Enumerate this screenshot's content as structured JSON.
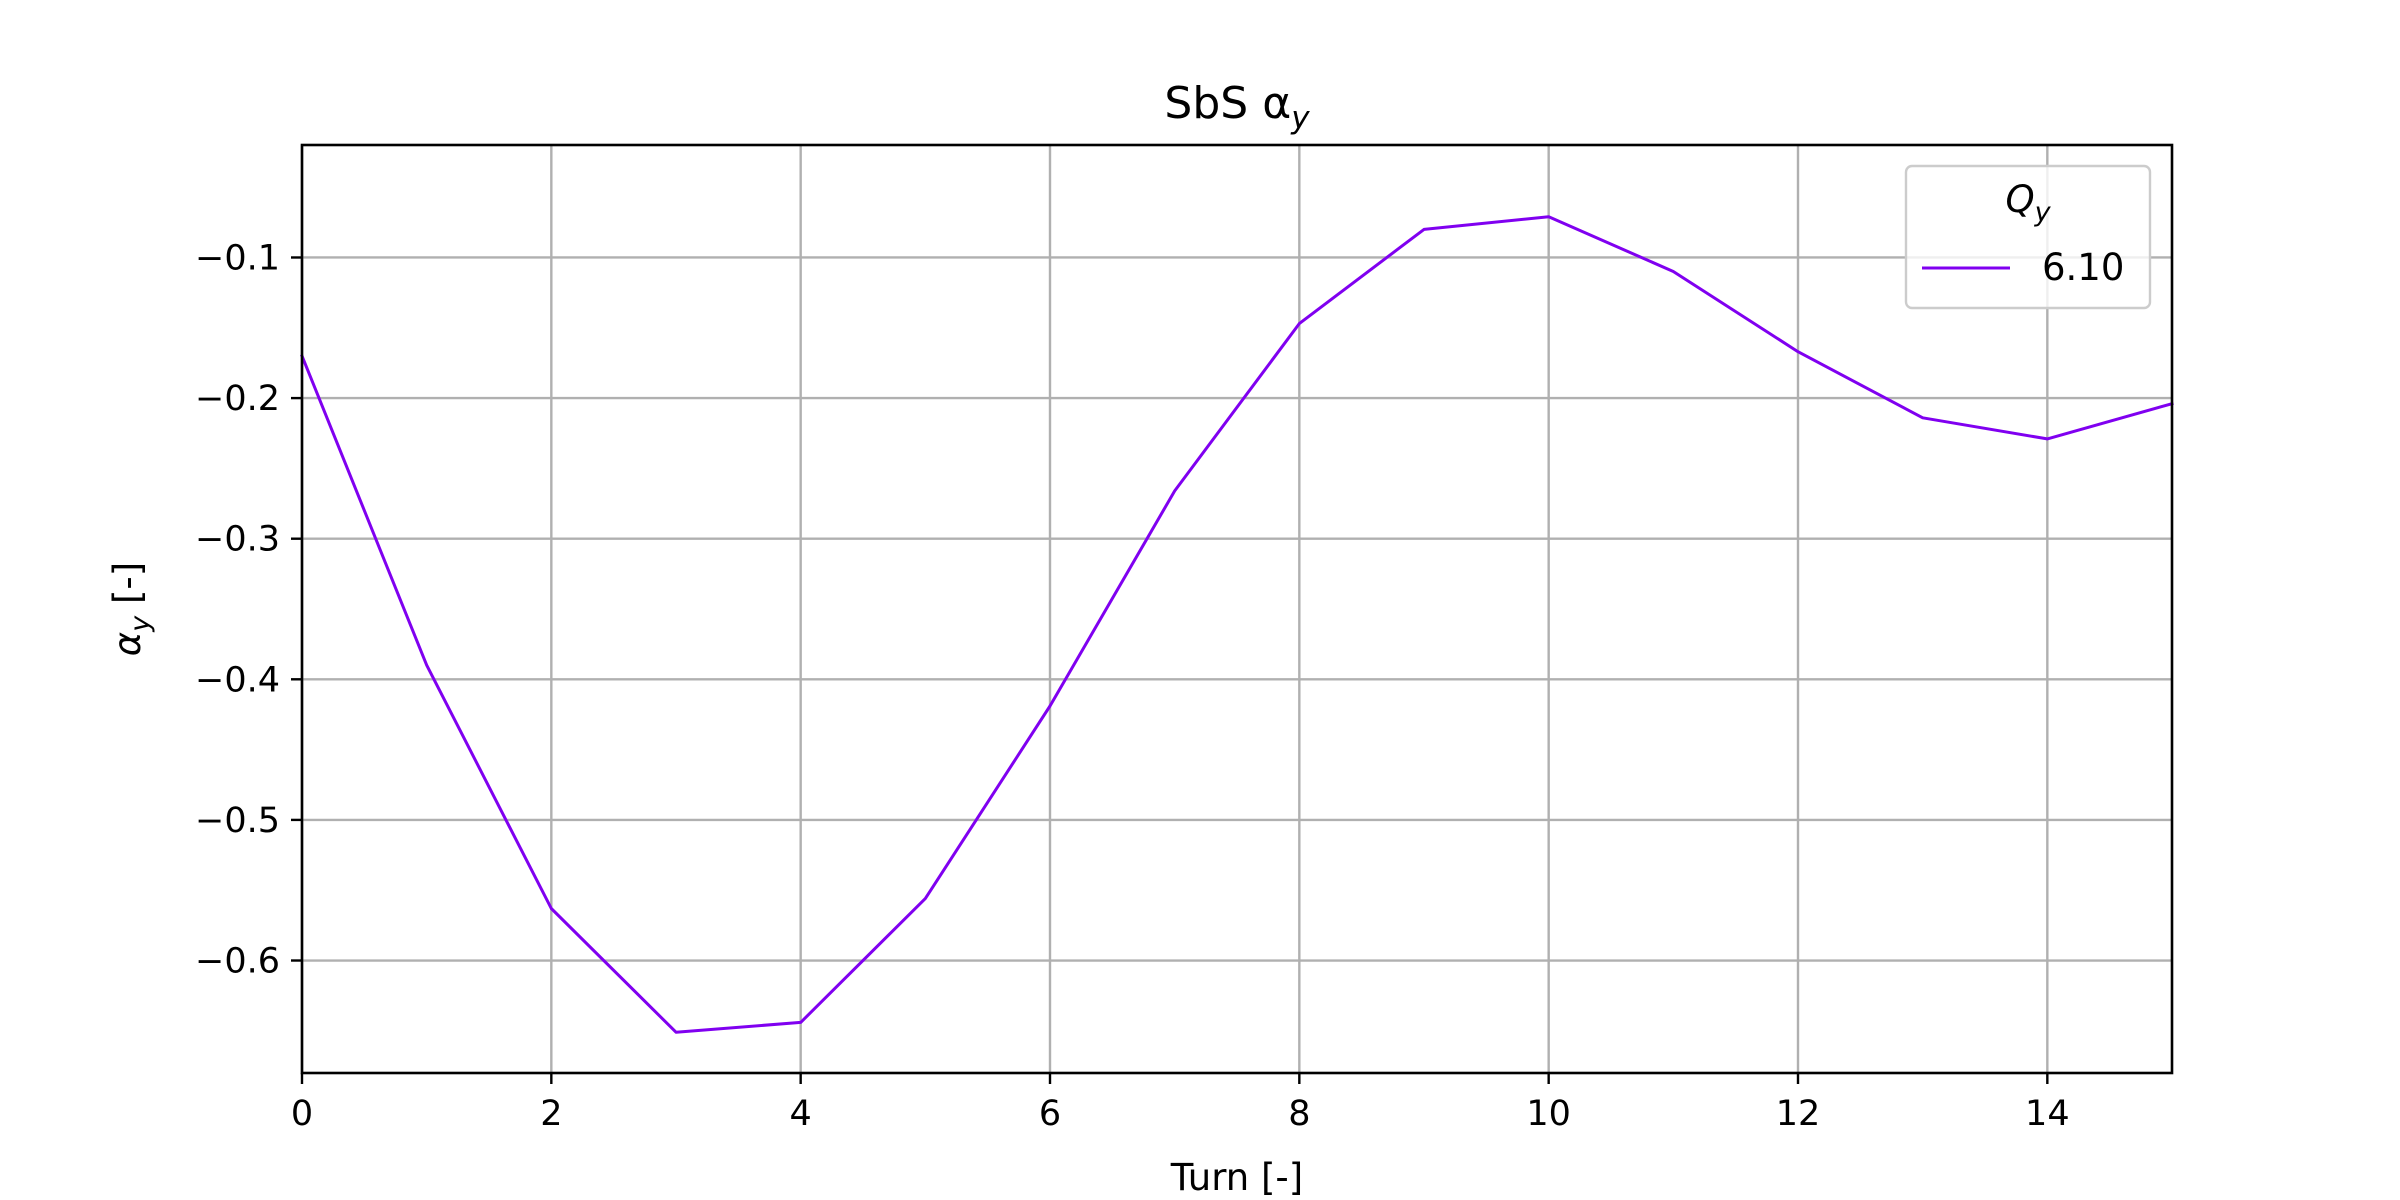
{
  "chart_data": {
    "type": "line",
    "title": "SbS α",
    "title_subscript": "y",
    "xlabel": "Turn [-]",
    "ylabel": "α",
    "ylabel_subscript": "y",
    "ylabel_suffix": " [-]",
    "xlim": [
      0,
      15
    ],
    "ylim": [
      -0.68,
      -0.02
    ],
    "xticks": [
      0,
      2,
      4,
      6,
      8,
      10,
      12,
      14
    ],
    "xtick_labels": [
      "0",
      "2",
      "4",
      "6",
      "8",
      "10",
      "12",
      "14"
    ],
    "yticks": [
      -0.1,
      -0.2,
      -0.3,
      -0.4,
      -0.5,
      -0.6
    ],
    "ytick_labels": [
      "−0.1",
      "−0.2",
      "−0.3",
      "−0.4",
      "−0.5",
      "−0.6"
    ],
    "grid": true,
    "legend": {
      "title": "Q",
      "title_subscript": "y",
      "placement": "top-right"
    },
    "series": [
      {
        "name": "6.10",
        "color": "#8000f0",
        "x": [
          0,
          1,
          2,
          3,
          4,
          5,
          6,
          7,
          8,
          9,
          10,
          11,
          12,
          13,
          14,
          15
        ],
        "y": [
          -0.17,
          -0.39,
          -0.563,
          -0.651,
          -0.644,
          -0.556,
          -0.419,
          -0.266,
          -0.147,
          -0.08,
          -0.071,
          -0.11,
          -0.167,
          -0.214,
          -0.229,
          -0.204
        ]
      }
    ]
  }
}
